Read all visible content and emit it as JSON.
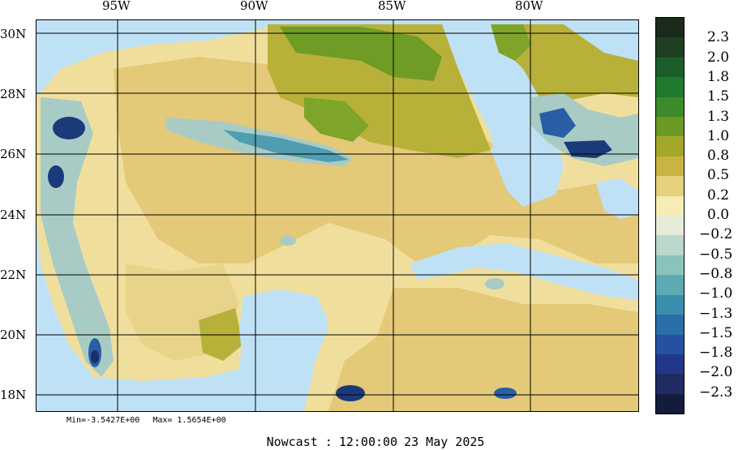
{
  "map": {
    "lon_labels": [
      "95W",
      "90W",
      "85W",
      "80W"
    ],
    "lat_labels": [
      "30N",
      "28N",
      "26N",
      "24N",
      "22N",
      "20N",
      "18N"
    ],
    "colors": {
      "ocean": "#bfe1f5",
      "land_light": "#f3e7b0",
      "land_mid": "#e7d08a",
      "land_dark": "#c9b451",
      "olive": "#a4ad2b",
      "green": "#5f9b22",
      "teal_light": "#a8ccc5",
      "teal": "#4f9db0",
      "blue": "#1f5a9e",
      "navy": "#1b2f66"
    }
  },
  "colorbar": {
    "labels": [
      "2.3",
      "2.0",
      "1.8",
      "1.5",
      "1.3",
      "1.0",
      "0.8",
      "0.5",
      "0.2",
      "0.0",
      "−0.2",
      "−0.5",
      "−0.8",
      "−1.0",
      "−1.3",
      "−1.5",
      "−1.8",
      "−2.0",
      "−2.3"
    ],
    "colors": [
      "#1b2a1b",
      "#1e3f22",
      "#1c5e2a",
      "#1f7a2e",
      "#3c8a2a",
      "#6a9a22",
      "#a4a82a",
      "#c9b441",
      "#e7d07e",
      "#f6ecb6",
      "#e6ecd8",
      "#bcd8cc",
      "#8cc2bc",
      "#5eaab4",
      "#3a8fae",
      "#2a6fa8",
      "#2552a0",
      "#22378a",
      "#202b62",
      "#141c3e"
    ]
  },
  "footer": {
    "min_text": "Min=-3.5427E+00",
    "max_text": "Max= 1.5654E+00",
    "nowcast_label": "Nowcast :",
    "time": "12:00:00",
    "date": "23 May 2025"
  }
}
